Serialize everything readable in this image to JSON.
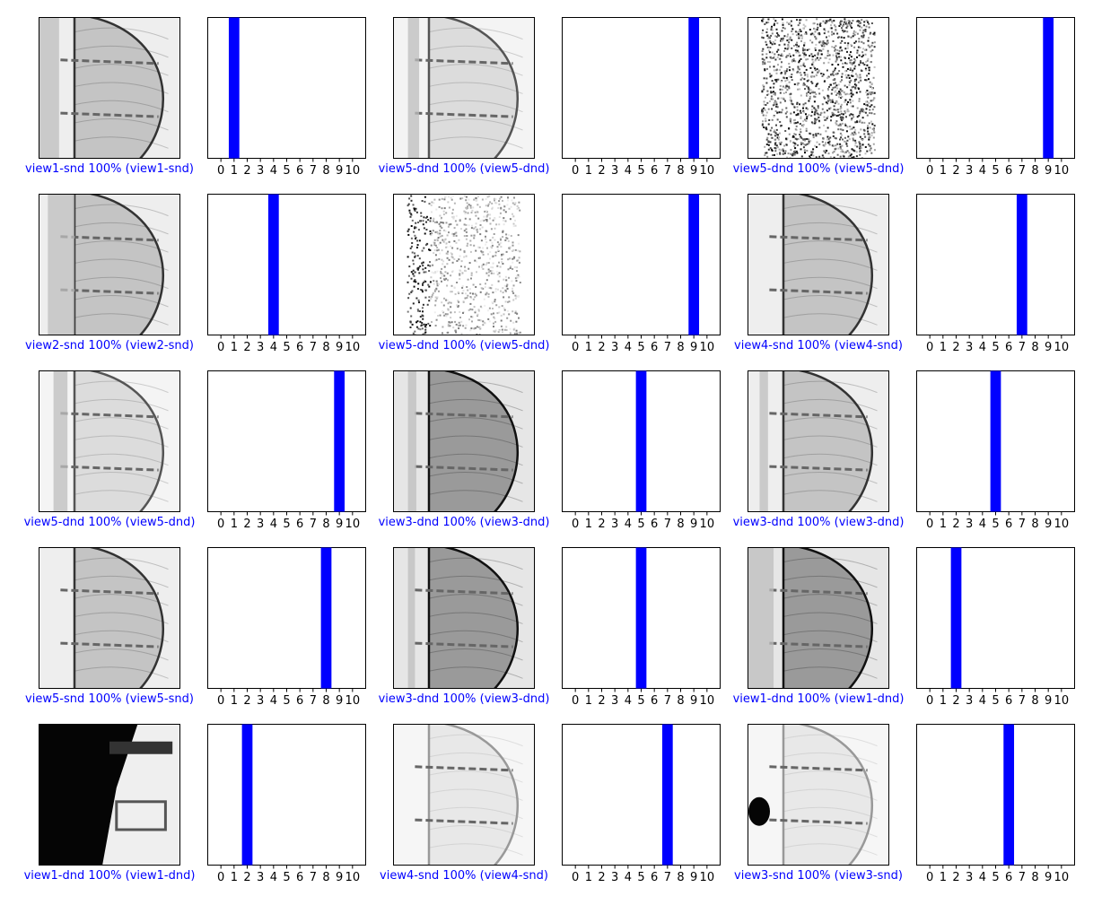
{
  "panels": [
    {
      "caption": "view1-snd 100% (view1-snd)",
      "caption_color": "#0000ff",
      "image": {
        "tone": "mid",
        "strip": [
          0.0,
          0.14
        ],
        "blob": false
      },
      "prediction_bar": 1
    },
    {
      "caption": "view5-dnd 100% (view5-dnd)",
      "caption_color": "#0000ff",
      "image": {
        "tone": "light",
        "strip": [
          0.1,
          0.18
        ],
        "blob": false
      },
      "prediction_bar": 9
    },
    {
      "caption": "view5-dnd 100% (view5-dnd)",
      "caption_color": "#0000ff",
      "image": {
        "tone": "noise",
        "strip": null,
        "blob": false
      },
      "prediction_bar": 9
    },
    {
      "caption": "view2-snd 100% (view2-snd)",
      "caption_color": "#0000ff",
      "image": {
        "tone": "mid",
        "strip": [
          0.06,
          0.25
        ],
        "blob": false
      },
      "prediction_bar": 4
    },
    {
      "caption": "view5-dnd 100% (view5-dnd)",
      "caption_color": "#0000ff",
      "image": {
        "tone": "sparse-noise",
        "strip": null,
        "blob": false
      },
      "prediction_bar": 9
    },
    {
      "caption": "view4-snd 100% (view4-snd)",
      "caption_color": "#0000ff",
      "image": {
        "tone": "mid",
        "strip": null,
        "blob": false
      },
      "prediction_bar": 7
    },
    {
      "caption": "view5-dnd 100% (view5-dnd)",
      "caption_color": "#0000ff",
      "image": {
        "tone": "light",
        "strip": [
          0.1,
          0.2
        ],
        "blob": false
      },
      "prediction_bar": 9
    },
    {
      "caption": "view3-dnd 100% (view3-dnd)",
      "caption_color": "#0000ff",
      "image": {
        "tone": "dark",
        "strip": [
          0.1,
          0.16
        ],
        "blob": false
      },
      "prediction_bar": 5
    },
    {
      "caption": "view3-dnd 100% (view3-dnd)",
      "caption_color": "#0000ff",
      "image": {
        "tone": "mid",
        "strip": [
          0.08,
          0.14
        ],
        "blob": false
      },
      "prediction_bar": 5
    },
    {
      "caption": "view5-snd 100% (view5-snd)",
      "caption_color": "#0000ff",
      "image": {
        "tone": "mid",
        "strip": null,
        "blob": false
      },
      "prediction_bar": 8
    },
    {
      "caption": "view3-dnd 100% (view3-dnd)",
      "caption_color": "#0000ff",
      "image": {
        "tone": "dark",
        "strip": [
          0.1,
          0.15
        ],
        "blob": false
      },
      "prediction_bar": 5
    },
    {
      "caption": "view1-dnd 100% (view1-dnd)",
      "caption_color": "#0000ff",
      "image": {
        "tone": "dark",
        "strip": [
          0.0,
          0.18
        ],
        "blob": false
      },
      "prediction_bar": 2
    },
    {
      "caption": "view1-dnd 100% (view1-dnd)",
      "caption_color": "#0000ff",
      "image": {
        "tone": "black",
        "strip": null,
        "blob": false
      },
      "prediction_bar": 2
    },
    {
      "caption": "view4-snd 100% (view4-snd)",
      "caption_color": "#0000ff",
      "image": {
        "tone": "verylight",
        "strip": null,
        "blob": false
      },
      "prediction_bar": 7
    },
    {
      "caption": "view3-snd 100% (view3-snd)",
      "caption_color": "#0000ff",
      "image": {
        "tone": "verylight",
        "strip": null,
        "blob": true
      },
      "prediction_bar": 6
    }
  ],
  "chart_data": {
    "type": "bar",
    "categories": [
      "0",
      "1",
      "2",
      "3",
      "4",
      "5",
      "6",
      "7",
      "8",
      "9",
      "10"
    ],
    "bar_color": "#0000ff",
    "series": [
      {
        "values": [
          0,
          100,
          0,
          0,
          0,
          0,
          0,
          0,
          0,
          0,
          0
        ]
      },
      {
        "values": [
          0,
          0,
          0,
          0,
          0,
          0,
          0,
          0,
          0,
          100,
          0
        ]
      },
      {
        "values": [
          0,
          0,
          0,
          0,
          0,
          0,
          0,
          0,
          0,
          100,
          0
        ]
      },
      {
        "values": [
          0,
          0,
          0,
          0,
          100,
          0,
          0,
          0,
          0,
          0,
          0
        ]
      },
      {
        "values": [
          0,
          0,
          0,
          0,
          0,
          0,
          0,
          0,
          0,
          100,
          0
        ]
      },
      {
        "values": [
          0,
          0,
          0,
          0,
          0,
          0,
          0,
          100,
          0,
          0,
          0
        ]
      },
      {
        "values": [
          0,
          0,
          0,
          0,
          0,
          0,
          0,
          0,
          0,
          100,
          0
        ]
      },
      {
        "values": [
          0,
          0,
          0,
          0,
          0,
          100,
          0,
          0,
          0,
          0,
          0
        ]
      },
      {
        "values": [
          0,
          0,
          0,
          0,
          0,
          100,
          0,
          0,
          0,
          0,
          0
        ]
      },
      {
        "values": [
          0,
          0,
          0,
          0,
          0,
          0,
          0,
          0,
          100,
          0,
          0
        ]
      },
      {
        "values": [
          0,
          0,
          0,
          0,
          0,
          100,
          0,
          0,
          0,
          0,
          0
        ]
      },
      {
        "values": [
          0,
          0,
          100,
          0,
          0,
          0,
          0,
          0,
          0,
          0,
          0
        ]
      },
      {
        "values": [
          0,
          0,
          100,
          0,
          0,
          0,
          0,
          0,
          0,
          0,
          0
        ]
      },
      {
        "values": [
          0,
          0,
          0,
          0,
          0,
          0,
          0,
          100,
          0,
          0,
          0
        ]
      },
      {
        "values": [
          0,
          0,
          0,
          0,
          0,
          0,
          100,
          0,
          0,
          0,
          0
        ]
      }
    ],
    "xlim": [
      -1,
      11
    ],
    "ylim": [
      0,
      100
    ],
    "grid": false
  }
}
